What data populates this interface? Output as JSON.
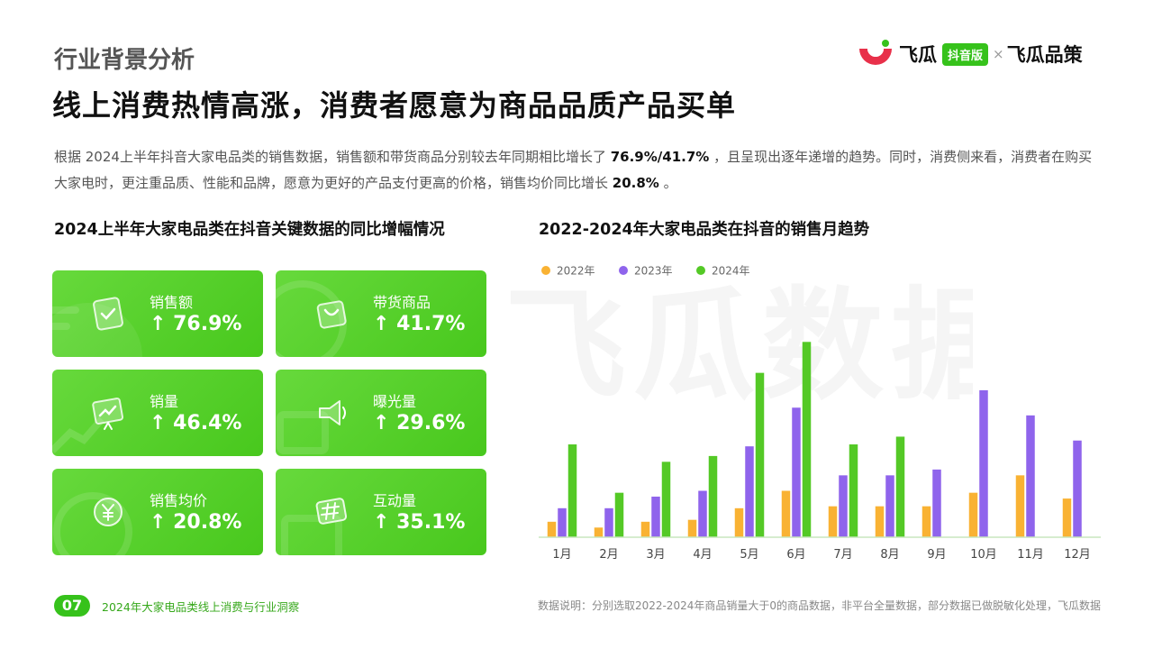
{
  "section_label": "行业背景分析",
  "headline": "线上消费热情高涨，消费者愿意为商品品质产品买单",
  "brand": {
    "name": "飞瓜",
    "badge": "抖音版",
    "separator": "×",
    "partner": "飞瓜品策",
    "accent": "#36c21b"
  },
  "description": {
    "p1": "根据 2024上半年抖音大家电品类的销售数据，销售额和带货商品分别较去年同期相比增长了",
    "b1": "76.9%/41.7%",
    "p2": "，且呈现出逐年递增的趋势。同时，消费侧来看，消费者在购买大家电时，更注重品质、性能和品牌，愿意为更好的产品支付更高的价格，销售均价同比增长",
    "b2": "20.8%",
    "p3": "。"
  },
  "left_title": "2024上半年大家电品类在抖音关键数据的同比增幅情况",
  "right_title": "2022-2024年大家电品类在抖音的销售月趋势",
  "cards": [
    {
      "label": "销售额",
      "value": "↑ 76.9%",
      "icon": "document-check-icon"
    },
    {
      "label": "带货商品",
      "value": "↑ 41.7%",
      "icon": "shopping-bag-icon"
    },
    {
      "label": "销量",
      "value": "↑ 46.4%",
      "icon": "trend-board-icon"
    },
    {
      "label": "曝光量",
      "value": "↑ 29.6%",
      "icon": "megaphone-icon"
    },
    {
      "label": "销售均价",
      "value": "↑ 20.8%",
      "icon": "yuan-coin-icon"
    },
    {
      "label": "互动量",
      "value": "↑ 35.1%",
      "icon": "hashtag-icon"
    }
  ],
  "chart_data": {
    "type": "bar",
    "title": "2022-2024年大家电品类在抖音的销售月趋势",
    "categories": [
      "1月",
      "2月",
      "3月",
      "4月",
      "5月",
      "6月",
      "7月",
      "8月",
      "9月",
      "10月",
      "11月",
      "12月"
    ],
    "series": [
      {
        "name": "2022年",
        "color": "#f9b233",
        "values": [
          8,
          5,
          8,
          9,
          15,
          24,
          16,
          16,
          16,
          23,
          32,
          20
        ]
      },
      {
        "name": "2023年",
        "color": "#8f64ec",
        "values": [
          15,
          15,
          21,
          24,
          47,
          67,
          32,
          32,
          35,
          76,
          63,
          50
        ]
      },
      {
        "name": "2024年",
        "color": "#54c926",
        "values": [
          48,
          23,
          39,
          42,
          85,
          101,
          48,
          52,
          null,
          null,
          null,
          null
        ]
      }
    ],
    "legend_position": "top-left",
    "grid": false,
    "ylim": [
      0,
      110
    ]
  },
  "footer": {
    "page_number": "07",
    "report_title": "2024年大家电品类线上消费与行业洞察",
    "note": "数据说明：分别选取2022-2024年商品销量大于0的商品数据，非平台全量数据，部分数据已做脱敏化处理，飞瓜数据"
  },
  "watermark": "飞瓜数据"
}
